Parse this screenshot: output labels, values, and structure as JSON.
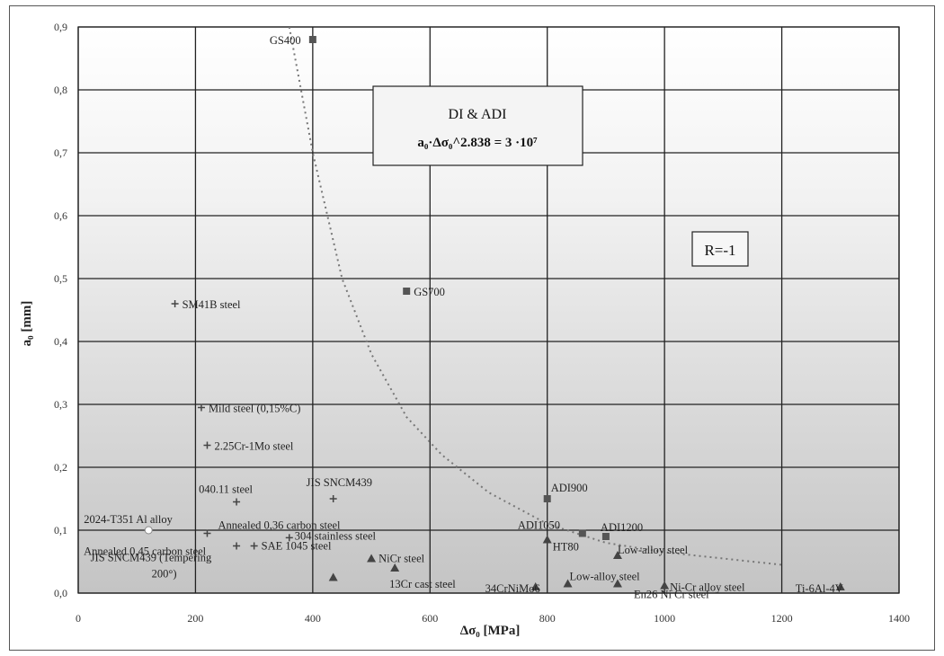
{
  "chart_data": {
    "type": "scatter",
    "xlabel": "Δσ₀ [MPa]",
    "ylabel": "a₀ [mm]",
    "xlim": [
      0,
      1400
    ],
    "ylim": [
      0,
      0.9
    ],
    "xticks": [
      "0",
      "200",
      "400",
      "600",
      "800",
      "1000",
      "1200",
      "1400"
    ],
    "yticks": [
      "0,0",
      "0,1",
      "0,2",
      "0,3",
      "0,4",
      "0,5",
      "0,6",
      "0,7",
      "0,8",
      "0,9"
    ],
    "grid": true,
    "curve": {
      "label_line1": "DI & ADI",
      "label_line2": "a₀·Δσ₀^2.838 = 3 ·10⁷",
      "points": [
        [
          360,
          0.9
        ],
        [
          400,
          0.7
        ],
        [
          450,
          0.5
        ],
        [
          500,
          0.38
        ],
        [
          560,
          0.28
        ],
        [
          620,
          0.22
        ],
        [
          700,
          0.16
        ],
        [
          800,
          0.11
        ],
        [
          900,
          0.08
        ],
        [
          1000,
          0.065
        ],
        [
          1100,
          0.055
        ],
        [
          1200,
          0.045
        ]
      ]
    },
    "annotation": "R=-1",
    "points": [
      {
        "name": "GS400",
        "x": 400,
        "y": 0.88,
        "marker": "square"
      },
      {
        "name": "GS700",
        "x": 560,
        "y": 0.48,
        "marker": "square"
      },
      {
        "name": "SM41B steel",
        "x": 165,
        "y": 0.46,
        "marker": "plus"
      },
      {
        "name": "Mild steel (0,15%C)",
        "x": 210,
        "y": 0.295,
        "marker": "plus"
      },
      {
        "name": "2.25Cr-1Mo steel",
        "x": 220,
        "y": 0.235,
        "marker": "plus"
      },
      {
        "name": "040.11 steel",
        "x": 270,
        "y": 0.145,
        "marker": "plus"
      },
      {
        "name": "JIS SNCM439",
        "x": 435,
        "y": 0.15,
        "marker": "plus"
      },
      {
        "name": "2024-T351 Al alloy",
        "x": 120,
        "y": 0.1,
        "marker": "circle"
      },
      {
        "name": "Annealed 0,36 carbon steel",
        "x": 220,
        "y": 0.095,
        "marker": "plus"
      },
      {
        "name": "304 stainless steel",
        "x": 360,
        "y": 0.088,
        "marker": "plus"
      },
      {
        "name": "Annealed 0,45 carbon steel",
        "x": 270,
        "y": 0.075,
        "marker": "plus"
      },
      {
        "name": "SAE 1045 steel",
        "x": 300,
        "y": 0.075,
        "marker": "plus"
      },
      {
        "name": "NiCr steel",
        "x": 500,
        "y": 0.055,
        "marker": "triangle"
      },
      {
        "name": "JIS SNCM439 (Tempering 200°)",
        "x": 435,
        "y": 0.025,
        "marker": "triangle"
      },
      {
        "name": "13Cr cast steel",
        "x": 540,
        "y": 0.04,
        "marker": "triangle"
      },
      {
        "name": "ADI900",
        "x": 800,
        "y": 0.15,
        "marker": "square"
      },
      {
        "name": "ADI1050",
        "x": 860,
        "y": 0.095,
        "marker": "square"
      },
      {
        "name": "ADI1200",
        "x": 900,
        "y": 0.09,
        "marker": "square"
      },
      {
        "name": "HT80",
        "x": 800,
        "y": 0.085,
        "marker": "triangle"
      },
      {
        "name": "Low-alloy steel",
        "x": 920,
        "y": 0.06,
        "marker": "triangle"
      },
      {
        "name": "Low-alloy steel",
        "x": 835,
        "y": 0.015,
        "marker": "triangle"
      },
      {
        "name": "34CrNiMo6",
        "x": 780,
        "y": 0.01,
        "marker": "triangle"
      },
      {
        "name": "En26 Ni Cr steel",
        "x": 920,
        "y": 0.015,
        "marker": "triangle"
      },
      {
        "name": "Ni-Cr alloy steel",
        "x": 1000,
        "y": 0.012,
        "marker": "triangle"
      },
      {
        "name": "Ti-6Al-4V",
        "x": 1300,
        "y": 0.01,
        "marker": "triangle"
      }
    ],
    "colors": {
      "plot_top": "#ffffff",
      "plot_bottom": "#c8c8c8",
      "grid": "#222222",
      "markers": "#444444",
      "curve": "#666666"
    }
  }
}
